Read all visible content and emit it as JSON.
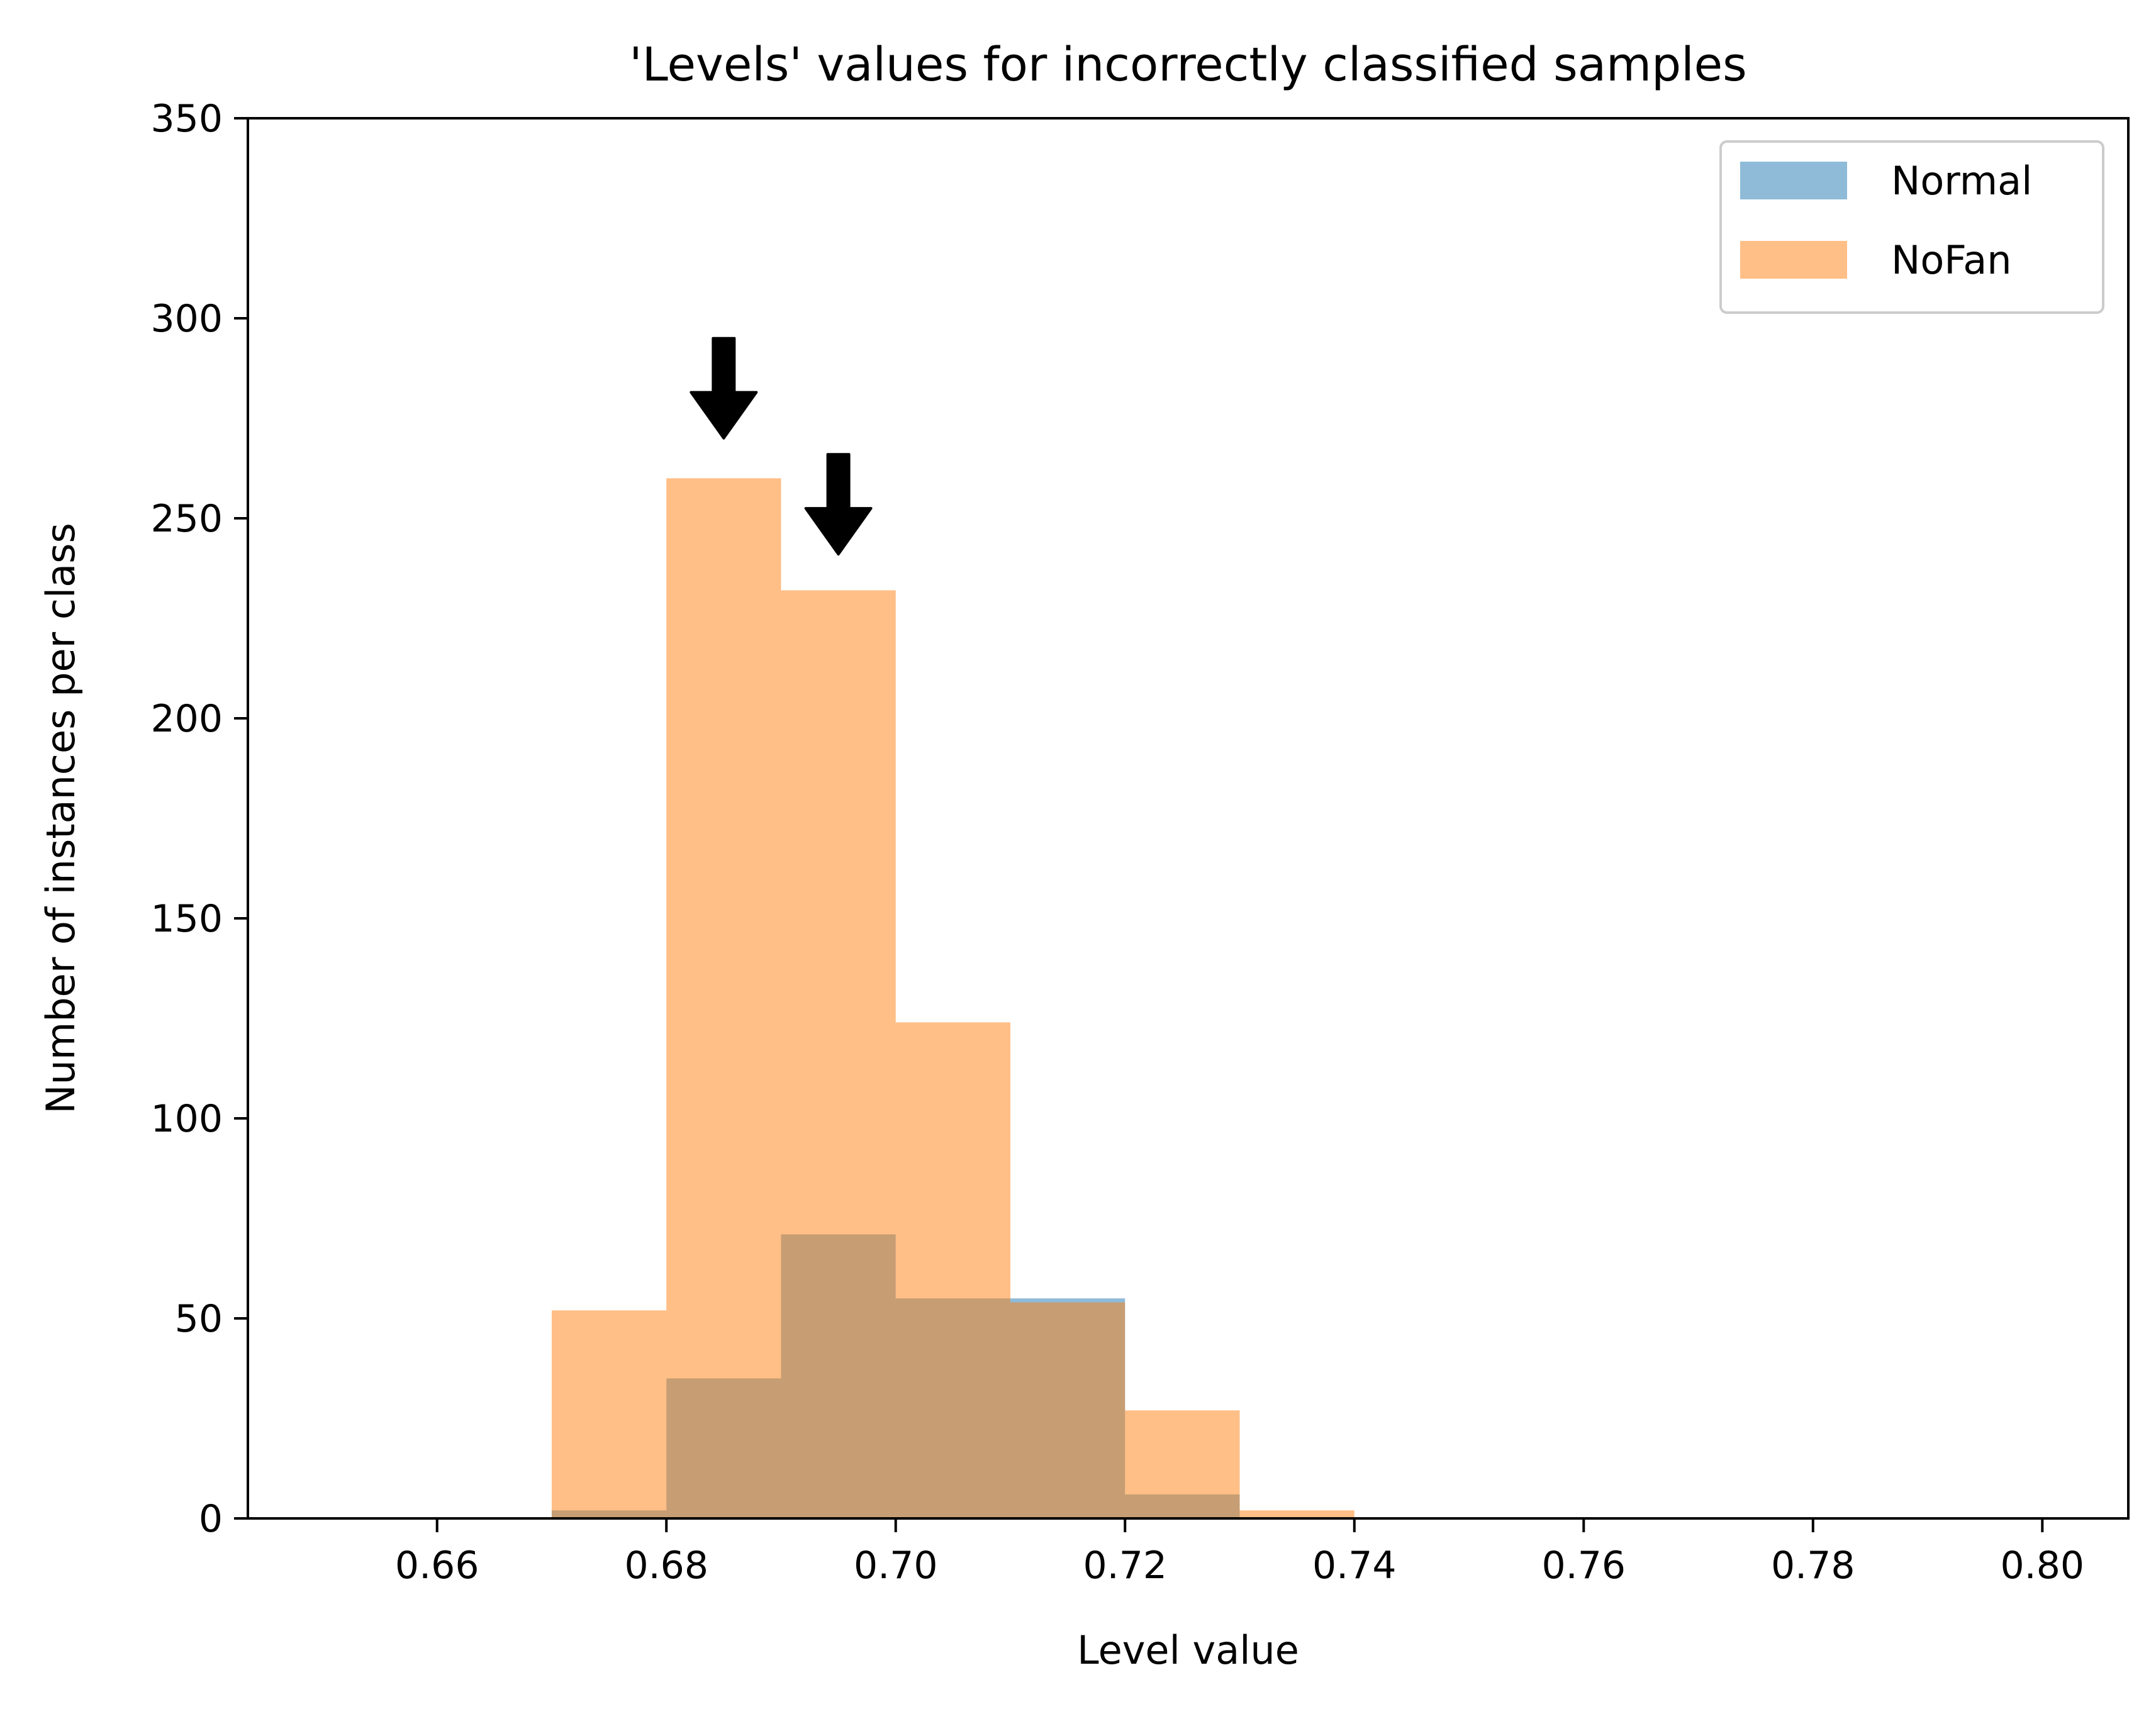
{
  "chart_data": {
    "type": "bar",
    "subtype": "overlapping-histogram",
    "title": "'Levels' values for incorrectly classified samples",
    "xlabel": "Level value",
    "ylabel": "Number of instances per class",
    "xlim": [
      0.6435,
      0.8075
    ],
    "ylim": [
      0,
      350
    ],
    "xticks": [
      0.66,
      0.68,
      0.7,
      0.72,
      0.74,
      0.76,
      0.78,
      0.8
    ],
    "xtick_labels": [
      "0.66",
      "0.68",
      "0.70",
      "0.72",
      "0.74",
      "0.76",
      "0.78",
      "0.80"
    ],
    "yticks": [
      0,
      50,
      100,
      150,
      200,
      250,
      300,
      350
    ],
    "ytick_labels": [
      "0",
      "50",
      "100",
      "150",
      "200",
      "250",
      "300",
      "350"
    ],
    "bin_edges": [
      0.67,
      0.68,
      0.69,
      0.7,
      0.71,
      0.72,
      0.73,
      0.74
    ],
    "series": [
      {
        "name": "Normal",
        "color": "#1f77b4",
        "alpha": 0.5,
        "values": [
          2,
          35,
          71,
          55,
          55,
          6,
          0
        ]
      },
      {
        "name": "NoFan",
        "color": "#ff7f0e",
        "alpha": 0.5,
        "values": [
          52,
          260,
          232,
          124,
          54,
          27,
          2
        ]
      }
    ],
    "annotations": [
      {
        "type": "down-arrow",
        "x": 0.685,
        "y_tip": 270,
        "y_tail": 295
      },
      {
        "type": "down-arrow",
        "x": 0.695,
        "y_tip": 241,
        "y_tail": 266
      }
    ],
    "legend": {
      "position": "top-right",
      "entries": [
        "Normal",
        "NoFan"
      ]
    }
  }
}
